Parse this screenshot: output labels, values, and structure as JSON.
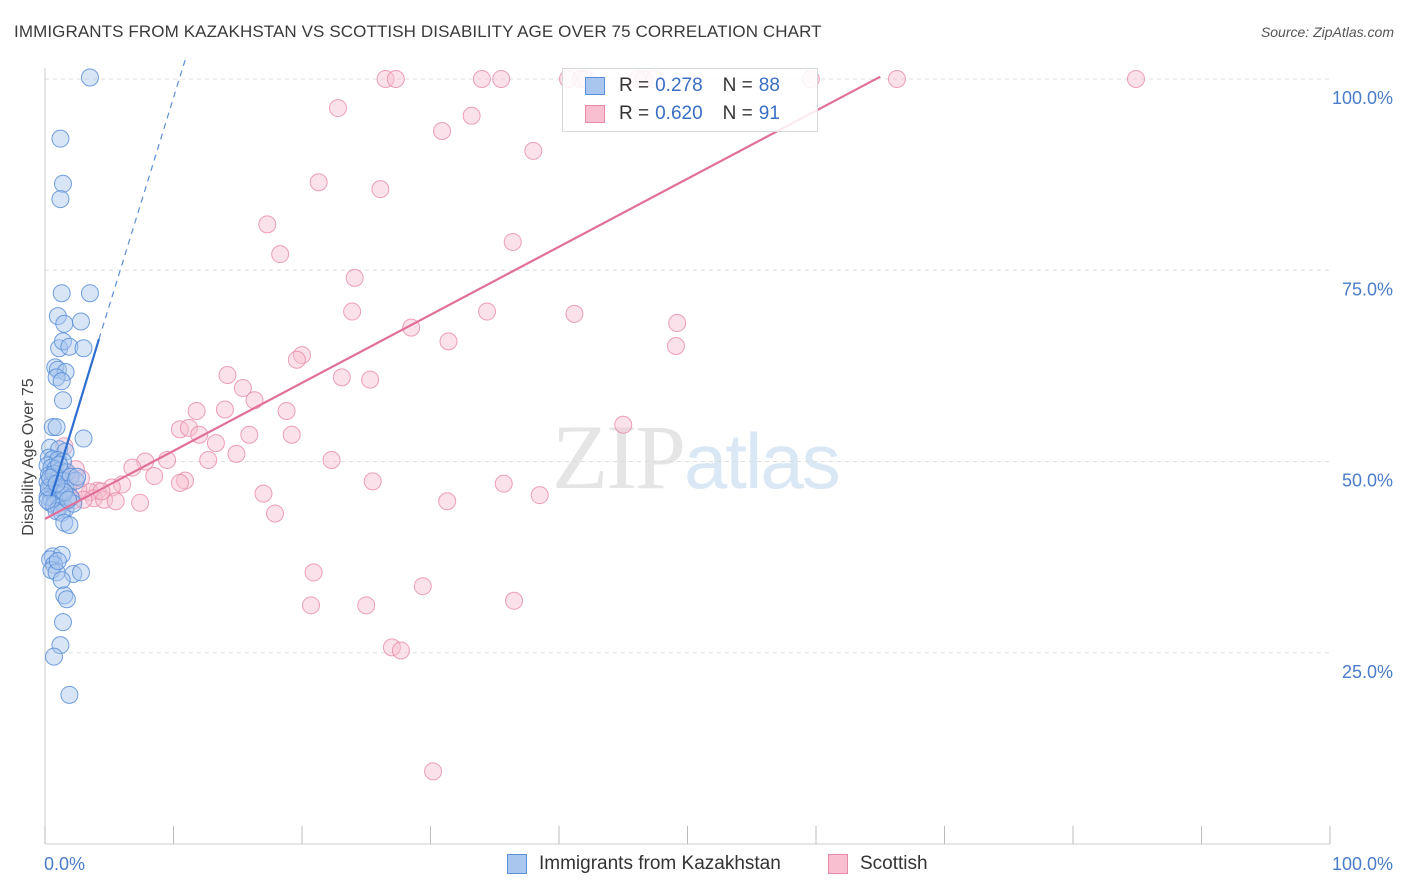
{
  "header": {
    "title": "IMMIGRANTS FROM KAZAKHSTAN VS SCOTTISH DISABILITY AGE OVER 75 CORRELATION CHART",
    "source": "Source: ZipAtlas.com"
  },
  "watermark": {
    "zip": "ZIP",
    "atlas": "atlas"
  },
  "legend": {
    "rows": [
      {
        "r_label": "R =",
        "r_value": "0.278",
        "n_label": "N =",
        "n_value": "88"
      },
      {
        "r_label": "R =",
        "r_value": "0.620",
        "n_label": "N =",
        "n_value": "91"
      }
    ]
  },
  "bottom_legend": {
    "series1": "Immigrants from Kazakhstan",
    "series2": "Scottish"
  },
  "colors": {
    "blue_fill": "#a9c6ee",
    "blue_stroke": "#5b8fd8",
    "blue_line": "#2e6fd1",
    "pink_fill": "#f7bfd0",
    "pink_stroke": "#e88aa8",
    "pink_line": "#e0709a",
    "tick_text": "#4a7cc9",
    "grid": "#dddddd"
  },
  "chart_data": {
    "type": "scatter",
    "title": "IMMIGRANTS FROM KAZAKHSTAN VS SCOTTISH DISABILITY AGE OVER 75 CORRELATION CHART",
    "xlabel": "",
    "ylabel": "Disability Age Over 75",
    "xlim": [
      0,
      100
    ],
    "ylim": [
      0,
      100
    ],
    "y_ticks": [
      25,
      50,
      75,
      100
    ],
    "y_tick_labels": [
      "25.0%",
      "50.0%",
      "75.0%",
      "100.0%"
    ],
    "x_tick_labels": [
      "0.0%",
      "100.0%"
    ],
    "grid": true,
    "series": [
      {
        "name": "Immigrants from Kazakhstan",
        "color": "blue",
        "r": 0.278,
        "n": 88,
        "trend_solid": [
          [
            0.5,
            45.5
          ],
          [
            4.2,
            66
          ]
        ],
        "trend_dashed": [
          [
            4.2,
            66
          ],
          [
            11,
            103
          ]
        ],
        "points": [
          [
            3.5,
            100.2
          ],
          [
            1.2,
            92.2
          ],
          [
            1.4,
            86.3
          ],
          [
            1.2,
            84.3
          ],
          [
            1.3,
            72.0
          ],
          [
            3.5,
            72.0
          ],
          [
            1.0,
            69.0
          ],
          [
            1.5,
            68.0
          ],
          [
            2.8,
            68.3
          ],
          [
            1.1,
            64.8
          ],
          [
            1.4,
            65.7
          ],
          [
            1.9,
            65.0
          ],
          [
            3.0,
            64.8
          ],
          [
            0.8,
            62.3
          ],
          [
            1.0,
            62.0
          ],
          [
            1.6,
            61.7
          ],
          [
            0.9,
            61.0
          ],
          [
            1.3,
            60.5
          ],
          [
            1.4,
            58.0
          ],
          [
            0.6,
            54.5
          ],
          [
            0.9,
            54.5
          ],
          [
            3.0,
            53.0
          ],
          [
            0.4,
            51.8
          ],
          [
            1.1,
            51.6
          ],
          [
            1.6,
            51.3
          ],
          [
            0.3,
            50.5
          ],
          [
            0.6,
            50.3
          ],
          [
            1.0,
            50.2
          ],
          [
            1.4,
            50.0
          ],
          [
            0.2,
            49.5
          ],
          [
            0.5,
            49.2
          ],
          [
            0.8,
            49.0
          ],
          [
            1.2,
            48.8
          ],
          [
            1.7,
            48.6
          ],
          [
            0.3,
            48.2
          ],
          [
            0.6,
            48.0
          ],
          [
            1.0,
            47.8
          ],
          [
            1.3,
            47.6
          ],
          [
            2.0,
            48.0
          ],
          [
            0.2,
            47.3
          ],
          [
            0.5,
            47.0
          ],
          [
            0.8,
            46.8
          ],
          [
            1.2,
            46.6
          ],
          [
            1.6,
            46.4
          ],
          [
            0.3,
            46.2
          ],
          [
            0.6,
            46.0
          ],
          [
            1.0,
            45.8
          ],
          [
            1.4,
            45.6
          ],
          [
            0.2,
            45.4
          ],
          [
            0.5,
            45.2
          ],
          [
            0.8,
            45.0
          ],
          [
            1.3,
            44.8
          ],
          [
            0.4,
            44.6
          ],
          [
            0.7,
            44.3
          ],
          [
            1.1,
            44.0
          ],
          [
            1.6,
            43.8
          ],
          [
            0.9,
            43.5
          ],
          [
            1.3,
            43.3
          ],
          [
            0.2,
            44.9
          ],
          [
            2.0,
            45.3
          ],
          [
            2.2,
            44.5
          ],
          [
            2.4,
            47.5
          ],
          [
            1.5,
            42.0
          ],
          [
            1.9,
            41.7
          ],
          [
            0.6,
            37.6
          ],
          [
            1.3,
            37.8
          ],
          [
            0.4,
            37.2
          ],
          [
            0.7,
            36.5
          ],
          [
            0.5,
            35.8
          ],
          [
            0.9,
            35.5
          ],
          [
            2.2,
            35.3
          ],
          [
            2.8,
            35.5
          ],
          [
            1.3,
            34.5
          ],
          [
            1.5,
            32.5
          ],
          [
            1.7,
            32.0
          ],
          [
            1.4,
            29.0
          ],
          [
            1.2,
            26.0
          ],
          [
            0.7,
            24.5
          ],
          [
            1.9,
            19.5
          ],
          [
            1.0,
            37.0
          ],
          [
            0.3,
            46.6
          ],
          [
            0.7,
            48.4
          ],
          [
            1.1,
            49.6
          ],
          [
            1.5,
            46.0
          ],
          [
            2.5,
            48.0
          ],
          [
            0.4,
            47.9
          ],
          [
            0.9,
            47.1
          ],
          [
            1.8,
            45.0
          ]
        ]
      },
      {
        "name": "Scottish",
        "color": "pink",
        "r": 0.62,
        "n": 91,
        "trend_solid": [
          [
            0,
            42.5
          ],
          [
            65,
            100.3
          ]
        ],
        "points": [
          [
            26.5,
            100.0
          ],
          [
            27.3,
            100.0
          ],
          [
            34.0,
            100.0
          ],
          [
            35.5,
            100.0
          ],
          [
            40.7,
            100.0
          ],
          [
            41.7,
            100.0
          ],
          [
            42.1,
            100.0
          ],
          [
            46.1,
            100.0
          ],
          [
            46.6,
            100.0
          ],
          [
            47.4,
            100.0
          ],
          [
            59.6,
            100.0
          ],
          [
            66.3,
            100.0
          ],
          [
            84.9,
            100.0
          ],
          [
            22.8,
            96.2
          ],
          [
            33.2,
            95.2
          ],
          [
            30.9,
            93.2
          ],
          [
            38.0,
            90.6
          ],
          [
            21.3,
            86.5
          ],
          [
            26.1,
            85.6
          ],
          [
            17.3,
            81.0
          ],
          [
            18.3,
            77.1
          ],
          [
            36.4,
            78.7
          ],
          [
            24.1,
            74.0
          ],
          [
            23.9,
            69.6
          ],
          [
            34.4,
            69.6
          ],
          [
            41.2,
            69.3
          ],
          [
            28.5,
            67.5
          ],
          [
            31.4,
            65.7
          ],
          [
            49.2,
            68.1
          ],
          [
            49.1,
            65.1
          ],
          [
            20.0,
            63.9
          ],
          [
            19.6,
            63.3
          ],
          [
            23.1,
            61.0
          ],
          [
            25.3,
            60.7
          ],
          [
            14.2,
            61.3
          ],
          [
            15.4,
            59.6
          ],
          [
            16.3,
            58.0
          ],
          [
            14.0,
            56.8
          ],
          [
            11.8,
            56.6
          ],
          [
            18.8,
            56.6
          ],
          [
            45.0,
            54.8
          ],
          [
            10.5,
            54.2
          ],
          [
            11.2,
            54.4
          ],
          [
            12.0,
            53.5
          ],
          [
            15.9,
            53.5
          ],
          [
            19.2,
            53.5
          ],
          [
            13.3,
            52.4
          ],
          [
            14.9,
            51.0
          ],
          [
            12.7,
            50.2
          ],
          [
            22.3,
            50.2
          ],
          [
            9.5,
            50.2
          ],
          [
            7.8,
            50.0
          ],
          [
            6.8,
            49.2
          ],
          [
            8.5,
            48.1
          ],
          [
            10.9,
            47.5
          ],
          [
            10.5,
            47.2
          ],
          [
            25.5,
            47.4
          ],
          [
            35.7,
            47.1
          ],
          [
            6.0,
            47.0
          ],
          [
            5.2,
            46.6
          ],
          [
            4.1,
            46.2
          ],
          [
            3.5,
            46.0
          ],
          [
            2.6,
            46.3
          ],
          [
            1.8,
            46.5
          ],
          [
            1.2,
            47.0
          ],
          [
            0.7,
            47.6
          ],
          [
            1.9,
            48.2
          ],
          [
            2.8,
            47.8
          ],
          [
            3.8,
            45.2
          ],
          [
            4.6,
            45.0
          ],
          [
            5.5,
            44.8
          ],
          [
            7.4,
            44.6
          ],
          [
            2.2,
            44.9
          ],
          [
            3.0,
            45.0
          ],
          [
            17.0,
            45.8
          ],
          [
            17.9,
            43.2
          ],
          [
            31.3,
            44.8
          ],
          [
            38.5,
            45.6
          ],
          [
            20.9,
            35.5
          ],
          [
            20.7,
            31.2
          ],
          [
            25.0,
            31.2
          ],
          [
            29.4,
            33.7
          ],
          [
            36.5,
            31.8
          ],
          [
            27.0,
            25.7
          ],
          [
            27.7,
            25.3
          ],
          [
            30.2,
            9.5
          ],
          [
            1.5,
            52.0
          ],
          [
            2.4,
            49.0
          ],
          [
            0.9,
            45.5
          ],
          [
            1.4,
            44.6
          ],
          [
            4.4,
            46.1
          ]
        ]
      }
    ]
  }
}
